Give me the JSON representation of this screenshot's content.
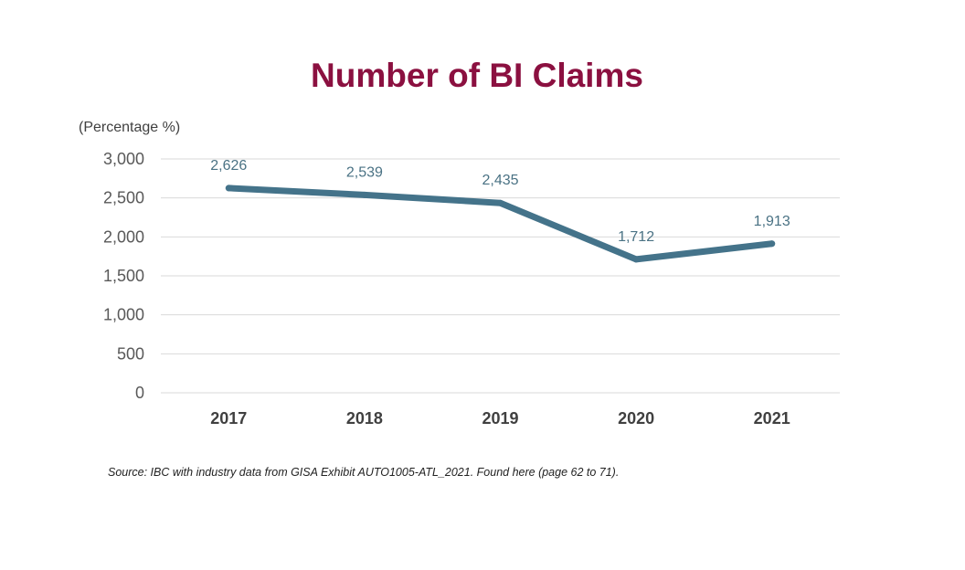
{
  "chart_data": {
    "type": "line",
    "title": "Number of BI Claims",
    "unit_label": "(Percentage %)",
    "categories": [
      "2017",
      "2018",
      "2019",
      "2020",
      "2021"
    ],
    "series": [
      {
        "values": [
          2626,
          2539,
          2435,
          1712,
          1913
        ],
        "color": "#44738a"
      }
    ],
    "data_labels": [
      "2,626",
      "2,539",
      "2,435",
      "1,712",
      "1,913"
    ],
    "ylim": [
      0,
      3000
    ],
    "yticks": [
      0,
      500,
      1000,
      1500,
      2000,
      2500,
      3000
    ],
    "ytick_labels": [
      "0",
      "500",
      "1,000",
      "1,500",
      "2,000",
      "2,500",
      "3,000"
    ],
    "grid": true,
    "legend": "none"
  },
  "source_note": "Source: IBC with industry data from GISA Exhibit AUTO1005-ATL_2021.  Found here (page 62 to 71)."
}
